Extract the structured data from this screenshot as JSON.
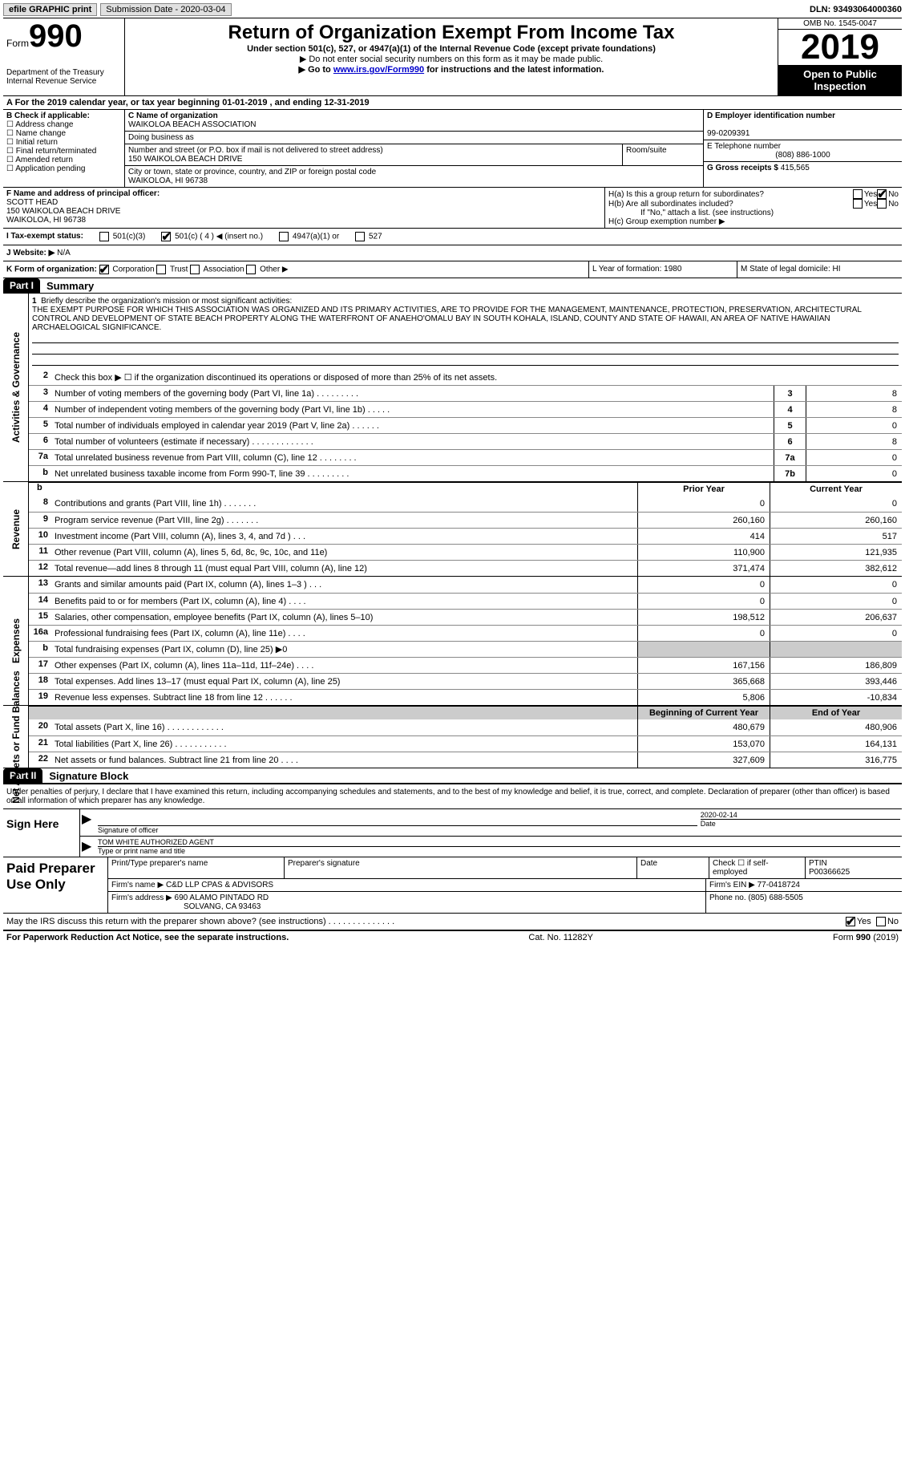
{
  "top": {
    "efile": "efile GRAPHIC print",
    "submission": "Submission Date - 2020-03-04",
    "dln": "DLN: 93493064000360"
  },
  "header": {
    "form_label": "Form",
    "form_num": "990",
    "dept": "Department of the Treasury\nInternal Revenue Service",
    "title": "Return of Organization Exempt From Income Tax",
    "subtitle": "Under section 501(c), 527, or 4947(a)(1) of the Internal Revenue Code (except private foundations)",
    "note1": "▶ Do not enter social security numbers on this form as it may be made public.",
    "note2_pre": "▶ Go to ",
    "note2_link": "www.irs.gov/Form990",
    "note2_post": " for instructions and the latest information.",
    "omb": "OMB No. 1545-0047",
    "year": "2019",
    "open": "Open to Public Inspection"
  },
  "rowA": "A For the 2019 calendar year, or tax year beginning 01-01-2019    , and ending 12-31-2019",
  "colB": {
    "hdr": "B Check if applicable:",
    "items": [
      "Address change",
      "Name change",
      "Initial return",
      "Final return/terminated",
      "Amended return",
      "Application pending"
    ]
  },
  "colC": {
    "name_label": "C Name of organization",
    "name": "WAIKOLOA BEACH ASSOCIATION",
    "dba_label": "Doing business as",
    "addr_label": "Number and street (or P.O. box if mail is not delivered to street address)",
    "addr": "150 WAIKOLOA BEACH DRIVE",
    "room_label": "Room/suite",
    "city_label": "City or town, state or province, country, and ZIP or foreign postal code",
    "city": "WAIKOLOA, HI  96738"
  },
  "colD": {
    "ein_label": "D Employer identification number",
    "ein": "99-0209391",
    "phone_label": "E Telephone number",
    "phone": "(808) 886-1000",
    "gross_label": "G Gross receipts $",
    "gross": "415,565"
  },
  "rowF": {
    "label": "F Name and address of principal officer:",
    "name": "SCOTT HEAD",
    "addr1": "150 WAIKOLOA BEACH DRIVE",
    "addr2": "WAIKOLOA, HI  96738"
  },
  "rowH": {
    "ha": "H(a)  Is this a group return for subordinates?",
    "hb": "H(b)  Are all subordinates included?",
    "hb_note": "If \"No,\" attach a list. (see instructions)",
    "hc": "H(c)  Group exemption number ▶",
    "yes": "Yes",
    "no": "No"
  },
  "rowI": {
    "label": "I    Tax-exempt status:",
    "opts": [
      "501(c)(3)",
      "501(c) ( 4 ) ◀ (insert no.)",
      "4947(a)(1) or",
      "527"
    ]
  },
  "rowJ": {
    "label": "J   Website: ▶",
    "val": "N/A"
  },
  "rowK": {
    "label": "K Form of organization:",
    "opts": [
      "Corporation",
      "Trust",
      "Association",
      "Other ▶"
    ],
    "l": "L Year of formation: 1980",
    "m": "M State of legal domicile: HI"
  },
  "part1": {
    "hdr": "Part I",
    "title": "Summary"
  },
  "mission": {
    "n": "1",
    "label": "Briefly describe the organization's mission or most significant activities:",
    "text": "THE EXEMPT PURPOSE FOR WHICH THIS ASSOCIATION WAS ORGANIZED AND ITS PRIMARY ACTIVITIES, ARE TO PROVIDE FOR THE MANAGEMENT, MAINTENANCE, PROTECTION, PRESERVATION, ARCHITECTURAL CONTROL AND DEVELOPMENT OF STATE BEACH PROPERTY ALONG THE WATERFRONT OF ANAEHO'OMALU BAY IN SOUTH KOHALA, ISLAND, COUNTY AND STATE OF HAWAII, AN AREA OF NATIVE HAWAIIAN ARCHAELOGICAL SIGNIFICANCE."
  },
  "gov_lines": [
    {
      "n": "2",
      "t": "Check this box ▶ ☐  if the organization discontinued its operations or disposed of more than 25% of its net assets."
    },
    {
      "n": "3",
      "t": "Number of voting members of the governing body (Part VI, line 1a)   .   .   .   .   .   .   .   .   .",
      "cn": "3",
      "cv": "8"
    },
    {
      "n": "4",
      "t": "Number of independent voting members of the governing body (Part VI, line 1b)   .   .   .   .   .",
      "cn": "4",
      "cv": "8"
    },
    {
      "n": "5",
      "t": "Total number of individuals employed in calendar year 2019 (Part V, line 2a)   .   .   .   .   .   .",
      "cn": "5",
      "cv": "0"
    },
    {
      "n": "6",
      "t": "Total number of volunteers (estimate if necessary)   .   .   .   .   .   .   .   .   .   .   .   .   .",
      "cn": "6",
      "cv": "8"
    },
    {
      "n": "7a",
      "t": "Total unrelated business revenue from Part VIII, column (C), line 12   .   .   .   .   .   .   .   .",
      "cn": "7a",
      "cv": "0"
    },
    {
      "n": "b",
      "t": "Net unrelated business taxable income from Form 990-T, line 39   .   .   .   .   .   .   .   .   .",
      "cn": "7b",
      "cv": "0"
    }
  ],
  "rev_hdr": {
    "b": "b",
    "prior": "Prior Year",
    "curr": "Current Year"
  },
  "rev_lines": [
    {
      "n": "8",
      "t": "Contributions and grants (Part VIII, line 1h)   .   .   .   .   .   .   .",
      "c1": "0",
      "c2": "0"
    },
    {
      "n": "9",
      "t": "Program service revenue (Part VIII, line 2g)   .   .   .   .   .   .   .",
      "c1": "260,160",
      "c2": "260,160"
    },
    {
      "n": "10",
      "t": "Investment income (Part VIII, column (A), lines 3, 4, and 7d )   .   .   .",
      "c1": "414",
      "c2": "517"
    },
    {
      "n": "11",
      "t": "Other revenue (Part VIII, column (A), lines 5, 6d, 8c, 9c, 10c, and 11e)",
      "c1": "110,900",
      "c2": "121,935"
    },
    {
      "n": "12",
      "t": "Total revenue—add lines 8 through 11 (must equal Part VIII, column (A), line 12)",
      "c1": "371,474",
      "c2": "382,612"
    }
  ],
  "exp_lines": [
    {
      "n": "13",
      "t": "Grants and similar amounts paid (Part IX, column (A), lines 1–3 )   .   .   .",
      "c1": "0",
      "c2": "0"
    },
    {
      "n": "14",
      "t": "Benefits paid to or for members (Part IX, column (A), line 4)   .   .   .   .",
      "c1": "0",
      "c2": "0"
    },
    {
      "n": "15",
      "t": "Salaries, other compensation, employee benefits (Part IX, column (A), lines 5–10)",
      "c1": "198,512",
      "c2": "206,637"
    },
    {
      "n": "16a",
      "t": "Professional fundraising fees (Part IX, column (A), line 11e)   .   .   .   .",
      "c1": "0",
      "c2": "0"
    },
    {
      "n": "b",
      "t": "Total fundraising expenses (Part IX, column (D), line 25) ▶0",
      "c1": "",
      "c2": "",
      "shaded": true
    },
    {
      "n": "17",
      "t": "Other expenses (Part IX, column (A), lines 11a–11d, 11f–24e)   .   .   .   .",
      "c1": "167,156",
      "c2": "186,809"
    },
    {
      "n": "18",
      "t": "Total expenses. Add lines 13–17 (must equal Part IX, column (A), line 25)",
      "c1": "365,668",
      "c2": "393,446"
    },
    {
      "n": "19",
      "t": "Revenue less expenses. Subtract line 18 from line 12   .   .   .   .   .   .",
      "c1": "5,806",
      "c2": "-10,834"
    }
  ],
  "net_hdr": {
    "h1": "Beginning of Current Year",
    "h2": "End of Year"
  },
  "net_lines": [
    {
      "n": "20",
      "t": "Total assets (Part X, line 16)   .   .   .   .   .   .   .   .   .   .   .   .",
      "c1": "480,679",
      "c2": "480,906"
    },
    {
      "n": "21",
      "t": "Total liabilities (Part X, line 26)   .   .   .   .   .   .   .   .   .   .   .",
      "c1": "153,070",
      "c2": "164,131"
    },
    {
      "n": "22",
      "t": "Net assets or fund balances. Subtract line 21 from line 20   .   .   .   .",
      "c1": "327,609",
      "c2": "316,775"
    }
  ],
  "part2": {
    "hdr": "Part II",
    "title": "Signature Block"
  },
  "sig_intro": "Under penalties of perjury, I declare that I have examined this return, including accompanying schedules and statements, and to the best of my knowledge and belief, it is true, correct, and complete. Declaration of preparer (other than officer) is based on all information of which preparer has any knowledge.",
  "sign": {
    "here": "Sign Here",
    "sig_of": "Signature of officer",
    "date": "2020-02-14",
    "date_lbl": "Date",
    "name_title": "TOM WHITE  AUTHORIZED AGENT",
    "type_lbl": "Type or print name and title"
  },
  "paid": {
    "label": "Paid Preparer Use Only",
    "r1": {
      "c1": "Print/Type preparer's name",
      "c2": "Preparer's signature",
      "c3": "Date",
      "c4": "Check ☐ if self-employed",
      "c5": "PTIN",
      "c5v": "P00366625"
    },
    "r2": {
      "c1": "Firm's name      ▶",
      "c1v": "C&D LLP CPAS & ADVISORS",
      "c2": "Firm's EIN ▶",
      "c2v": "77-0418724"
    },
    "r3": {
      "c1": "Firm's address ▶",
      "c1v": "690 ALAMO PINTADO RD",
      "c1v2": "SOLVANG, CA  93463",
      "c2": "Phone no.",
      "c2v": "(805) 688-5505"
    }
  },
  "discuss": {
    "t": "May the IRS discuss this return with the preparer shown above? (see instructions)   .   .   .   .   .   .   .   .   .   .   .   .   .   .",
    "yes": "Yes",
    "no": "No"
  },
  "foot": {
    "l": "For Paperwork Reduction Act Notice, see the separate instructions.",
    "m": "Cat. No. 11282Y",
    "r": "Form 990 (2019)"
  },
  "vlabels": {
    "gov": "Activities & Governance",
    "rev": "Revenue",
    "exp": "Expenses",
    "net": "Net Assets or Fund Balances"
  }
}
